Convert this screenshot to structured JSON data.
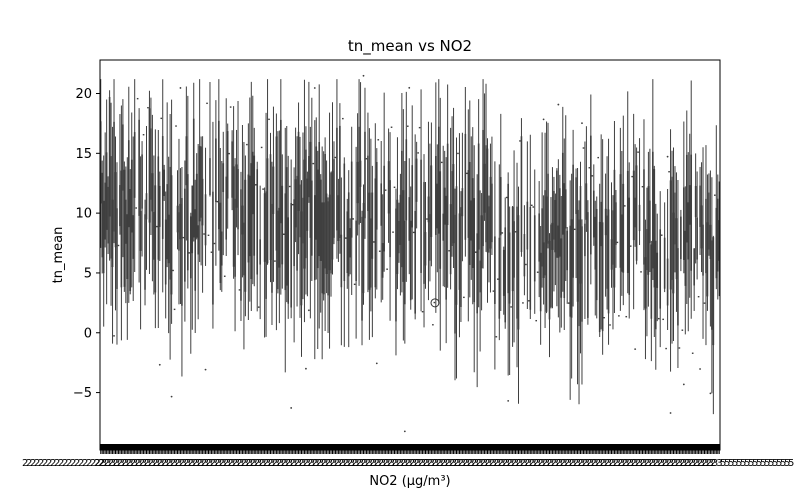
{
  "chart_data": {
    "type": "box",
    "title": "tn_mean vs NO2",
    "xlabel": "NO2 (µg/m³)",
    "ylabel": "tn_mean",
    "ylim": [
      -9.8,
      22.8
    ],
    "yticks": [
      -5,
      0,
      5,
      10,
      15,
      20
    ],
    "ytick_labels": [
      "−5",
      "0",
      "5",
      "10",
      "15",
      "20"
    ],
    "x_tick_first_label": "2",
    "x_tick_last_label": "5",
    "grid": false,
    "legend": "none",
    "box_color": "#3f3f3f",
    "note_categories": "several hundred distinct NO2 categories with overlapping unreadable tick labels",
    "estimated_category_count": 420,
    "highlighted_outlier": {
      "y": 2.5
    },
    "whisker_range_typical": [
      -6.8,
      21.2
    ]
  }
}
